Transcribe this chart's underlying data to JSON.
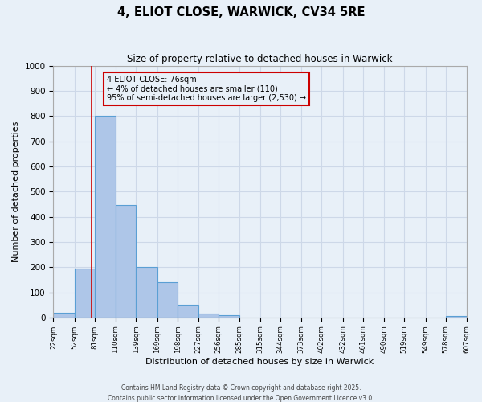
{
  "title": "4, ELIOT CLOSE, WARWICK, CV34 5RE",
  "subtitle": "Size of property relative to detached houses in Warwick",
  "xlabel": "Distribution of detached houses by size in Warwick",
  "ylabel": "Number of detached properties",
  "bar_edges": [
    22,
    52,
    81,
    110,
    139,
    169,
    198,
    227,
    256,
    285,
    315,
    344,
    373,
    402,
    432,
    461,
    490,
    519,
    549,
    578,
    607
  ],
  "bar_heights": [
    20,
    195,
    800,
    445,
    200,
    140,
    50,
    15,
    10,
    0,
    0,
    0,
    0,
    0,
    0,
    0,
    0,
    0,
    0,
    5
  ],
  "bar_color": "#aec6e8",
  "bar_edge_color": "#5a9fd4",
  "property_line_x": 76,
  "property_line_color": "#cc0000",
  "annotation_text_line1": "4 ELIOT CLOSE: 76sqm",
  "annotation_text_line2": "← 4% of detached houses are smaller (110)",
  "annotation_text_line3": "95% of semi-detached houses are larger (2,530) →",
  "annotation_box_color": "#cc0000",
  "ylim": [
    0,
    1000
  ],
  "yticks": [
    0,
    100,
    200,
    300,
    400,
    500,
    600,
    700,
    800,
    900,
    1000
  ],
  "grid_color": "#cdd8e8",
  "background_color": "#e8f0f8",
  "footer_line1": "Contains HM Land Registry data © Crown copyright and database right 2025.",
  "footer_line2": "Contains public sector information licensed under the Open Government Licence v3.0."
}
